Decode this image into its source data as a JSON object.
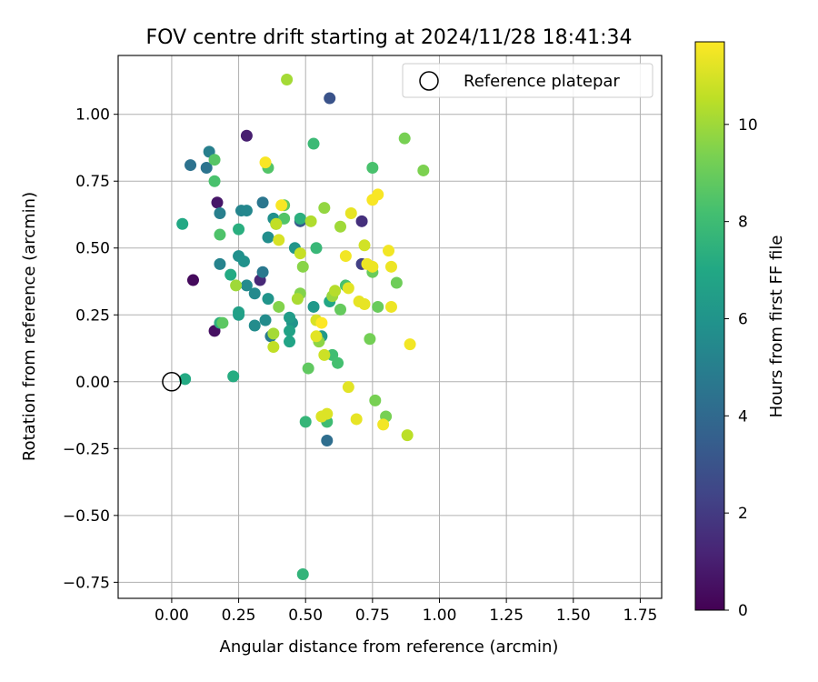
{
  "chart_data": {
    "type": "scatter",
    "title": "FOV centre drift starting at 2024/11/28 18:41:34",
    "xlabel": "Angular distance from reference (arcmin)",
    "ylabel": "Rotation from reference (arcmin)",
    "xlim": [
      -0.2,
      1.83
    ],
    "ylim": [
      -0.81,
      1.22
    ],
    "xticks": [
      0.0,
      0.25,
      0.5,
      0.75,
      1.0,
      1.25,
      1.5,
      1.75
    ],
    "xtick_labels": [
      "0.00",
      "0.25",
      "0.50",
      "0.75",
      "1.00",
      "1.25",
      "1.50",
      "1.75"
    ],
    "yticks": [
      -0.75,
      -0.5,
      -0.25,
      0.0,
      0.25,
      0.5,
      0.75,
      1.0
    ],
    "ytick_labels": [
      "−0.75",
      "−0.50",
      "−0.25",
      "0.00",
      "0.25",
      "0.50",
      "0.75",
      "1.00"
    ],
    "grid": true,
    "legend": {
      "placement": "top-right",
      "entries": [
        {
          "label": "Reference platepar",
          "marker": "open-circle"
        }
      ]
    },
    "reference_point": {
      "x": 0.0,
      "y": 0.0
    },
    "colorbar": {
      "label": "Hours from first FF file",
      "colormap": "viridis",
      "range": [
        0,
        11.7
      ],
      "ticks": [
        0,
        2,
        4,
        6,
        8,
        10
      ],
      "tick_labels": [
        "0",
        "2",
        "4",
        "6",
        "8",
        "10"
      ]
    },
    "series": [
      {
        "points": [
          {
            "x": 0.08,
            "y": 0.38,
            "c": 0.3
          },
          {
            "x": 0.16,
            "y": 0.19,
            "c": 0.5
          },
          {
            "x": 0.17,
            "y": 0.67,
            "c": 0.7
          },
          {
            "x": 0.28,
            "y": 0.92,
            "c": 1.0
          },
          {
            "x": 0.33,
            "y": 0.38,
            "c": 1.3
          },
          {
            "x": 0.71,
            "y": 0.6,
            "c": 1.6
          },
          {
            "x": 0.71,
            "y": 0.44,
            "c": 2.2
          },
          {
            "x": 0.59,
            "y": 1.06,
            "c": 3.0
          },
          {
            "x": 0.48,
            "y": 0.6,
            "c": 3.3
          },
          {
            "x": 0.58,
            "y": -0.22,
            "c": 4.2
          },
          {
            "x": 0.07,
            "y": 0.81,
            "c": 4.4
          },
          {
            "x": 0.13,
            "y": 0.8,
            "c": 4.5
          },
          {
            "x": 0.34,
            "y": 0.67,
            "c": 4.6
          },
          {
            "x": 0.34,
            "y": 0.41,
            "c": 4.7
          },
          {
            "x": 0.37,
            "y": 0.17,
            "c": 4.8
          },
          {
            "x": 0.14,
            "y": 0.86,
            "c": 5.0
          },
          {
            "x": 0.18,
            "y": 0.63,
            "c": 5.0
          },
          {
            "x": 0.18,
            "y": 0.44,
            "c": 5.2
          },
          {
            "x": 0.26,
            "y": 0.64,
            "c": 5.3
          },
          {
            "x": 0.28,
            "y": 0.64,
            "c": 5.4
          },
          {
            "x": 0.28,
            "y": 0.36,
            "c": 5.5
          },
          {
            "x": 0.31,
            "y": 0.33,
            "c": 5.5
          },
          {
            "x": 0.31,
            "y": 0.21,
            "c": 5.6
          },
          {
            "x": 0.35,
            "y": 0.23,
            "c": 5.6
          },
          {
            "x": 0.36,
            "y": 0.54,
            "c": 5.7
          },
          {
            "x": 0.38,
            "y": 0.61,
            "c": 5.8
          },
          {
            "x": 0.25,
            "y": 0.47,
            "c": 5.8
          },
          {
            "x": 0.27,
            "y": 0.45,
            "c": 5.9
          },
          {
            "x": 0.36,
            "y": 0.31,
            "c": 6.0
          },
          {
            "x": 0.45,
            "y": 0.22,
            "c": 6.0
          },
          {
            "x": 0.46,
            "y": 0.5,
            "c": 6.1
          },
          {
            "x": 0.53,
            "y": 0.28,
            "c": 6.2
          },
          {
            "x": 0.56,
            "y": 0.17,
            "c": 6.3
          },
          {
            "x": 0.39,
            "y": 0.59,
            "c": 6.3
          },
          {
            "x": 0.44,
            "y": 0.24,
            "c": 6.4
          },
          {
            "x": 0.25,
            "y": 0.25,
            "c": 6.5
          },
          {
            "x": 0.25,
            "y": 0.26,
            "c": 6.6
          },
          {
            "x": 0.44,
            "y": 0.19,
            "c": 6.7
          },
          {
            "x": 0.44,
            "y": 0.15,
            "c": 6.8
          },
          {
            "x": 0.59,
            "y": 0.3,
            "c": 6.9
          },
          {
            "x": 0.04,
            "y": 0.59,
            "c": 7.0
          },
          {
            "x": 0.05,
            "y": 0.01,
            "c": 7.1
          },
          {
            "x": 0.22,
            "y": 0.4,
            "c": 7.1
          },
          {
            "x": 0.23,
            "y": 0.02,
            "c": 7.2
          },
          {
            "x": 0.25,
            "y": 0.57,
            "c": 7.3
          },
          {
            "x": 0.18,
            "y": 0.22,
            "c": 7.4
          },
          {
            "x": 0.48,
            "y": 0.61,
            "c": 7.4
          },
          {
            "x": 0.49,
            "y": -0.72,
            "c": 7.6
          },
          {
            "x": 0.5,
            "y": -0.15,
            "c": 7.7
          },
          {
            "x": 0.54,
            "y": 0.5,
            "c": 7.8
          },
          {
            "x": 0.53,
            "y": 0.89,
            "c": 7.9
          },
          {
            "x": 0.58,
            "y": -0.15,
            "c": 8.0
          },
          {
            "x": 0.6,
            "y": 0.1,
            "c": 8.1
          },
          {
            "x": 0.62,
            "y": 0.07,
            "c": 8.2
          },
          {
            "x": 0.65,
            "y": 0.36,
            "c": 8.3
          },
          {
            "x": 0.75,
            "y": 0.8,
            "c": 8.3
          },
          {
            "x": 0.16,
            "y": 0.75,
            "c": 8.3
          },
          {
            "x": 0.18,
            "y": 0.55,
            "c": 8.4
          },
          {
            "x": 0.36,
            "y": 0.8,
            "c": 8.5
          },
          {
            "x": 0.42,
            "y": 0.61,
            "c": 8.5
          },
          {
            "x": 0.16,
            "y": 0.83,
            "c": 8.6
          },
          {
            "x": 0.19,
            "y": 0.22,
            "c": 8.7
          },
          {
            "x": 0.42,
            "y": 0.66,
            "c": 8.8
          },
          {
            "x": 0.51,
            "y": 0.05,
            "c": 8.8
          },
          {
            "x": 0.63,
            "y": 0.27,
            "c": 8.9
          },
          {
            "x": 0.75,
            "y": 0.41,
            "c": 9.0
          },
          {
            "x": 0.77,
            "y": 0.28,
            "c": 9.0
          },
          {
            "x": 0.84,
            "y": 0.37,
            "c": 9.1
          },
          {
            "x": 0.74,
            "y": 0.16,
            "c": 9.2
          },
          {
            "x": 0.8,
            "y": -0.13,
            "c": 9.3
          },
          {
            "x": 0.76,
            "y": -0.07,
            "c": 9.3
          },
          {
            "x": 0.87,
            "y": 0.91,
            "c": 9.3
          },
          {
            "x": 0.94,
            "y": 0.79,
            "c": 9.4
          },
          {
            "x": 0.4,
            "y": 0.28,
            "c": 9.5
          },
          {
            "x": 0.48,
            "y": 0.33,
            "c": 9.5
          },
          {
            "x": 0.49,
            "y": 0.43,
            "c": 9.6
          },
          {
            "x": 0.55,
            "y": 0.15,
            "c": 9.7
          },
          {
            "x": 0.57,
            "y": 0.65,
            "c": 9.8
          },
          {
            "x": 0.6,
            "y": 0.32,
            "c": 9.9
          },
          {
            "x": 0.63,
            "y": 0.58,
            "c": 10.0
          },
          {
            "x": 0.24,
            "y": 0.36,
            "c": 10.0
          },
          {
            "x": 0.38,
            "y": 0.18,
            "c": 10.1
          },
          {
            "x": 0.43,
            "y": 1.13,
            "c": 10.1
          },
          {
            "x": 0.47,
            "y": 0.31,
            "c": 10.2
          },
          {
            "x": 0.52,
            "y": 0.6,
            "c": 10.3
          },
          {
            "x": 0.61,
            "y": 0.34,
            "c": 10.4
          },
          {
            "x": 0.88,
            "y": -0.2,
            "c": 10.5
          },
          {
            "x": 0.38,
            "y": 0.13,
            "c": 10.6
          },
          {
            "x": 0.39,
            "y": 0.59,
            "c": 10.6
          },
          {
            "x": 0.48,
            "y": 0.48,
            "c": 10.7
          },
          {
            "x": 0.57,
            "y": 0.1,
            "c": 10.8
          },
          {
            "x": 0.72,
            "y": 0.51,
            "c": 10.9
          },
          {
            "x": 0.54,
            "y": 0.23,
            "c": 11.0
          },
          {
            "x": 0.4,
            "y": 0.53,
            "c": 11.0
          },
          {
            "x": 0.56,
            "y": -0.13,
            "c": 11.1
          },
          {
            "x": 0.58,
            "y": -0.12,
            "c": 11.1
          },
          {
            "x": 0.54,
            "y": 0.17,
            "c": 11.2
          },
          {
            "x": 0.66,
            "y": 0.35,
            "c": 11.2
          },
          {
            "x": 0.66,
            "y": -0.02,
            "c": 11.2
          },
          {
            "x": 0.67,
            "y": 0.63,
            "c": 11.3
          },
          {
            "x": 0.69,
            "y": -0.14,
            "c": 11.3
          },
          {
            "x": 0.7,
            "y": 0.3,
            "c": 11.3
          },
          {
            "x": 0.72,
            "y": 0.29,
            "c": 11.3
          },
          {
            "x": 0.73,
            "y": 0.44,
            "c": 11.4
          },
          {
            "x": 0.75,
            "y": 0.43,
            "c": 11.4
          },
          {
            "x": 0.82,
            "y": 0.28,
            "c": 11.4
          },
          {
            "x": 0.82,
            "y": 0.43,
            "c": 11.4
          },
          {
            "x": 0.81,
            "y": 0.49,
            "c": 11.5
          },
          {
            "x": 0.89,
            "y": 0.14,
            "c": 11.5
          },
          {
            "x": 0.79,
            "y": -0.16,
            "c": 11.5
          },
          {
            "x": 0.65,
            "y": 0.47,
            "c": 11.5
          },
          {
            "x": 0.75,
            "y": 0.68,
            "c": 11.6
          },
          {
            "x": 0.77,
            "y": 0.7,
            "c": 11.6
          },
          {
            "x": 0.35,
            "y": 0.82,
            "c": 11.6
          },
          {
            "x": 0.41,
            "y": 0.66,
            "c": 11.6
          },
          {
            "x": 0.56,
            "y": 0.22,
            "c": 11.7
          }
        ]
      }
    ]
  }
}
